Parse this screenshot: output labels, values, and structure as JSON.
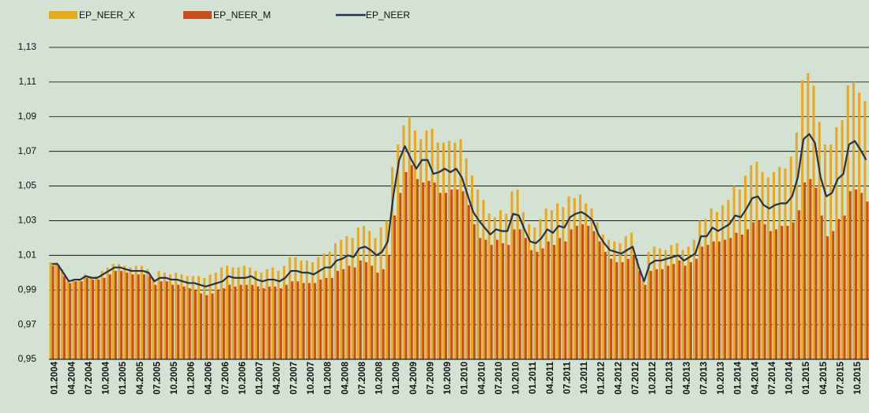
{
  "chart_data": {
    "type": "bar_line",
    "categories": [
      "01.2004",
      null,
      null,
      "04.2004",
      null,
      null,
      "07.2004",
      null,
      null,
      "10.2004",
      null,
      null,
      "01.2005",
      null,
      null,
      "04.2005",
      null,
      null,
      "07.2005",
      null,
      null,
      "10.2005",
      null,
      null,
      "01.2006",
      null,
      null,
      "04.2006",
      null,
      null,
      "07.2006",
      null,
      null,
      "10.2006",
      null,
      null,
      "01.2007",
      null,
      null,
      "04.2007",
      null,
      null,
      "07.2007",
      null,
      null,
      "10.2007",
      null,
      null,
      "01.2008",
      null,
      null,
      "04.2008",
      null,
      null,
      "07.2008",
      null,
      null,
      "10.2008",
      null,
      null,
      "01.2009",
      null,
      null,
      "04.2009",
      null,
      null,
      "07.2009",
      null,
      null,
      "10.2009",
      null,
      null,
      "01.2010",
      null,
      null,
      "04.2010",
      null,
      null,
      "07.2010",
      null,
      null,
      "10.2010",
      null,
      null,
      "01.2011",
      null,
      null,
      "04.2011",
      null,
      null,
      "07.2011",
      null,
      null,
      "10.2011",
      null,
      null,
      "01.2012",
      null,
      null,
      "04.2012",
      null,
      null,
      "07.2012",
      null,
      null,
      "10.2012",
      null,
      null,
      "01.2013",
      null,
      null,
      "04.2013",
      null,
      null,
      "07.2013",
      null,
      null,
      "10.2013",
      null,
      null,
      "01.2014",
      null,
      null,
      "04.2014",
      null,
      null,
      "07.2014",
      null,
      null,
      "10.2014",
      null,
      null,
      "01.2015",
      null,
      null,
      "04.2015",
      null,
      null,
      "07.2015",
      null,
      null,
      "10.2015",
      null,
      null
    ],
    "series": [
      {
        "name": "EP_NEER_X",
        "color": "#e8a820",
        "kind": "bar",
        "values": [
          1.006,
          1.006,
          1.002,
          0.995,
          0.996,
          0.996,
          0.999,
          0.998,
          0.998,
          1.001,
          1.003,
          1.005,
          1.005,
          1.004,
          1.003,
          1.004,
          1.004,
          1.002,
          0.997,
          1.001,
          1.0,
          0.999,
          1.0,
          0.999,
          0.998,
          0.998,
          0.998,
          0.997,
          0.999,
          1.0,
          1.003,
          1.004,
          1.003,
          1.003,
          1.004,
          1.003,
          1.001,
          1.0,
          1.002,
          1.003,
          1.001,
          1.004,
          1.009,
          1.009,
          1.007,
          1.007,
          1.006,
          1.009,
          1.011,
          1.012,
          1.017,
          1.019,
          1.021,
          1.02,
          1.026,
          1.027,
          1.024,
          1.02,
          1.026,
          1.03,
          1.061,
          1.074,
          1.085,
          1.09,
          1.082,
          1.077,
          1.082,
          1.083,
          1.075,
          1.075,
          1.076,
          1.075,
          1.077,
          1.066,
          1.056,
          1.048,
          1.042,
          1.034,
          1.032,
          1.036,
          1.034,
          1.047,
          1.048,
          1.035,
          1.028,
          1.026,
          1.031,
          1.037,
          1.036,
          1.04,
          1.038,
          1.044,
          1.043,
          1.045,
          1.04,
          1.037,
          1.029,
          1.022,
          1.019,
          1.018,
          1.017,
          1.021,
          1.023,
          1.008,
          0.996,
          1.012,
          1.015,
          1.014,
          1.013,
          1.016,
          1.017,
          1.013,
          1.015,
          1.019,
          1.03,
          1.031,
          1.037,
          1.035,
          1.039,
          1.042,
          1.05,
          1.048,
          1.056,
          1.062,
          1.064,
          1.058,
          1.055,
          1.058,
          1.061,
          1.06,
          1.067,
          1.081,
          1.111,
          1.115,
          1.108,
          1.087,
          1.074,
          1.074,
          1.084,
          1.088,
          1.108,
          1.11,
          1.104,
          1.099
        ]
      },
      {
        "name": "EP_NEER_M",
        "color": "#c8501e",
        "kind": "bar",
        "values": [
          1.004,
          1.004,
          0.998,
          0.994,
          0.995,
          0.995,
          0.997,
          0.996,
          0.996,
          0.997,
          0.999,
          1.001,
          1.001,
          1.0,
          0.999,
          0.999,
          0.999,
          0.998,
          0.993,
          0.995,
          0.995,
          0.993,
          0.993,
          0.992,
          0.991,
          0.99,
          0.988,
          0.987,
          0.988,
          0.99,
          0.991,
          0.993,
          0.992,
          0.993,
          0.993,
          0.993,
          0.992,
          0.991,
          0.992,
          0.992,
          0.991,
          0.993,
          0.995,
          0.995,
          0.994,
          0.994,
          0.994,
          0.996,
          0.997,
          0.997,
          1.001,
          1.002,
          1.004,
          1.003,
          1.007,
          1.006,
          1.004,
          1.0,
          1.002,
          1.01,
          1.033,
          1.046,
          1.058,
          1.062,
          1.054,
          1.052,
          1.053,
          1.052,
          1.046,
          1.046,
          1.048,
          1.048,
          1.047,
          1.039,
          1.028,
          1.02,
          1.019,
          1.016,
          1.019,
          1.017,
          1.016,
          1.025,
          1.025,
          1.02,
          1.013,
          1.012,
          1.014,
          1.018,
          1.016,
          1.02,
          1.018,
          1.025,
          1.027,
          1.028,
          1.027,
          1.024,
          1.018,
          1.012,
          1.008,
          1.006,
          1.006,
          1.008,
          1.01,
          1.001,
          0.993,
          1.001,
          1.002,
          1.002,
          1.004,
          1.005,
          1.007,
          1.004,
          1.006,
          1.008,
          1.015,
          1.016,
          1.018,
          1.018,
          1.019,
          1.02,
          1.023,
          1.022,
          1.025,
          1.029,
          1.03,
          1.028,
          1.024,
          1.025,
          1.027,
          1.027,
          1.029,
          1.036,
          1.052,
          1.054,
          1.049,
          1.033,
          1.021,
          1.024,
          1.031,
          1.033,
          1.047,
          1.048,
          1.046,
          1.041
        ]
      },
      {
        "name": "EP_NEER",
        "color": "#1f3350",
        "kind": "line",
        "values": [
          1.005,
          1.005,
          1.0,
          0.995,
          0.996,
          0.996,
          0.998,
          0.997,
          0.997,
          0.999,
          1.001,
          1.003,
          1.003,
          1.002,
          1.001,
          1.001,
          1.001,
          1.0,
          0.995,
          0.997,
          0.997,
          0.996,
          0.996,
          0.995,
          0.994,
          0.994,
          0.993,
          0.992,
          0.993,
          0.994,
          0.995,
          0.998,
          0.997,
          0.997,
          0.997,
          0.998,
          0.996,
          0.995,
          0.996,
          0.996,
          0.995,
          0.997,
          1.001,
          1.001,
          1.0,
          1.0,
          0.999,
          1.001,
          1.003,
          1.003,
          1.007,
          1.008,
          1.01,
          1.009,
          1.014,
          1.015,
          1.013,
          1.01,
          1.012,
          1.018,
          1.045,
          1.065,
          1.073,
          1.066,
          1.06,
          1.065,
          1.065,
          1.057,
          1.058,
          1.06,
          1.058,
          1.06,
          1.055,
          1.045,
          1.035,
          1.03,
          1.026,
          1.022,
          1.025,
          1.024,
          1.024,
          1.034,
          1.033,
          1.025,
          1.018,
          1.017,
          1.02,
          1.025,
          1.023,
          1.027,
          1.026,
          1.032,
          1.034,
          1.035,
          1.033,
          1.03,
          1.022,
          1.017,
          1.013,
          1.012,
          1.011,
          1.013,
          1.015,
          1.004,
          0.995,
          1.005,
          1.007,
          1.007,
          1.008,
          1.009,
          1.01,
          1.007,
          1.009,
          1.011,
          1.021,
          1.021,
          1.026,
          1.024,
          1.026,
          1.028,
          1.033,
          1.032,
          1.037,
          1.043,
          1.044,
          1.039,
          1.037,
          1.039,
          1.04,
          1.04,
          1.044,
          1.055,
          1.077,
          1.08,
          1.075,
          1.055,
          1.044,
          1.046,
          1.054,
          1.057,
          1.074,
          1.076,
          1.071,
          1.065
        ]
      }
    ],
    "ylim": [
      0.95,
      1.13
    ],
    "yticks": [
      {
        "value": 0.95,
        "label": "0,95"
      },
      {
        "value": 0.97,
        "label": "0,97"
      },
      {
        "value": 0.99,
        "label": "0,99"
      },
      {
        "value": 1.01,
        "label": "1,01"
      },
      {
        "value": 1.03,
        "label": "1,03"
      },
      {
        "value": 1.05,
        "label": "1,05"
      },
      {
        "value": 1.07,
        "label": "1,07"
      },
      {
        "value": 1.09,
        "label": "1,09"
      },
      {
        "value": 1.11,
        "label": "1,11"
      },
      {
        "value": 1.13,
        "label": "1,13"
      }
    ],
    "grid": true
  }
}
